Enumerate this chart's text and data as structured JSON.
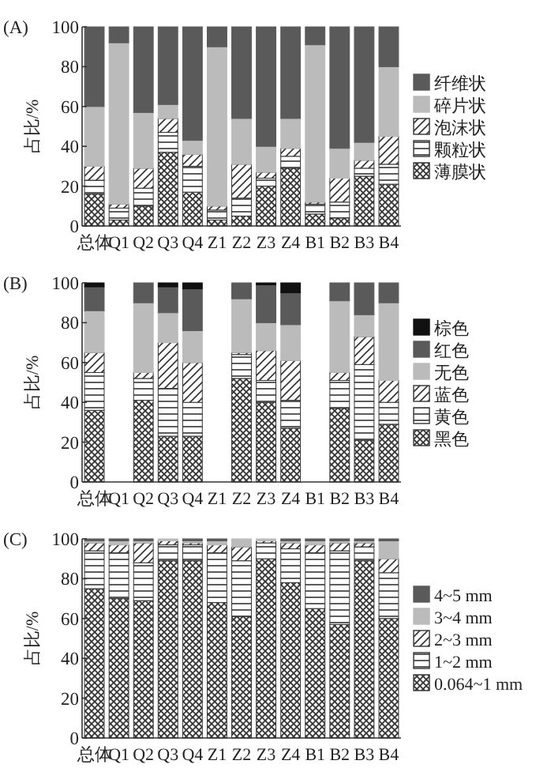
{
  "chart_data": [
    {
      "type": "bar",
      "title": "(A)",
      "ylabel": "占比/%",
      "stacked": true,
      "legend": "right",
      "ylim": [
        0,
        100
      ],
      "yticks": [
        0,
        20,
        40,
        60,
        80,
        100
      ],
      "categories": [
        "总体",
        "Q1",
        "Q2",
        "Q3",
        "Q4",
        "Z1",
        "Z2",
        "Z3",
        "Z4",
        "B1",
        "B2",
        "B3",
        "B4"
      ],
      "series": [
        {
          "name": "薄膜状",
          "color": "#333333",
          "values": [
            16,
            3,
            10,
            37,
            17,
            3,
            5,
            20,
            29,
            6,
            4,
            25,
            21
          ]
        },
        {
          "name": "颗粒状",
          "color": "#333333",
          "values": [
            7,
            6,
            9,
            10,
            13,
            5,
            9,
            4,
            6,
            5,
            8,
            4,
            10
          ]
        },
        {
          "name": "泡沫状",
          "color": "#333333",
          "values": [
            7,
            2,
            10,
            7,
            6,
            2,
            17,
            3,
            4,
            1,
            12,
            4,
            14
          ]
        },
        {
          "name": "碎片状",
          "color": "#bbbbbb",
          "values": [
            30,
            81,
            28,
            7,
            7,
            80,
            23,
            13,
            15,
            79,
            15,
            9,
            35
          ]
        },
        {
          "name": "纤维状",
          "color": "#5a5a5a",
          "values": [
            40,
            8,
            43,
            39,
            57,
            10,
            46,
            60,
            46,
            9,
            61,
            58,
            20
          ]
        }
      ]
    },
    {
      "type": "bar",
      "title": "(B)",
      "ylabel": "占比/%",
      "stacked": true,
      "legend": "right",
      "ylim": [
        0,
        100
      ],
      "yticks": [
        0,
        20,
        40,
        60,
        80,
        100
      ],
      "categories": [
        "总体",
        "Q1",
        "Q2",
        "Q3",
        "Q4",
        "Z1",
        "Z2",
        "Z3",
        "Z4",
        "B1",
        "B2",
        "B3",
        "B4"
      ],
      "series": [
        {
          "name": "黑色",
          "color": "#333333",
          "values": [
            36,
            null,
            41,
            23,
            23,
            null,
            52,
            40,
            27,
            null,
            37,
            21,
            29
          ]
        },
        {
          "name": "黄色",
          "color": "#333333",
          "values": [
            19,
            null,
            11,
            24,
            17,
            null,
            12,
            11,
            14,
            null,
            14,
            38,
            11
          ]
        },
        {
          "name": "蓝色",
          "color": "#333333",
          "values": [
            10,
            null,
            3,
            23,
            20,
            null,
            1,
            15,
            20,
            null,
            4,
            14,
            11
          ]
        },
        {
          "name": "无色",
          "color": "#bbbbbb",
          "values": [
            21,
            null,
            35,
            15,
            16,
            null,
            27,
            14,
            18,
            null,
            36,
            11,
            39
          ]
        },
        {
          "name": "红色",
          "color": "#5a5a5a",
          "values": [
            12,
            null,
            10,
            13,
            21,
            null,
            8,
            19,
            16,
            null,
            9,
            16,
            10
          ]
        },
        {
          "name": "棕色",
          "color": "#111111",
          "values": [
            2,
            null,
            0,
            2,
            3,
            null,
            0,
            1,
            5,
            null,
            0,
            0,
            0
          ]
        }
      ]
    },
    {
      "type": "bar",
      "title": "(C)",
      "ylabel": "占比/%",
      "stacked": true,
      "legend": "right",
      "ylim": [
        0,
        100
      ],
      "yticks": [
        0,
        20,
        40,
        60,
        80,
        100
      ],
      "categories": [
        "总体",
        "Q1",
        "Q2",
        "Q3",
        "Q4",
        "Z1",
        "Z2",
        "Z3",
        "Z4",
        "B1",
        "B2",
        "B3",
        "B4"
      ],
      "series": [
        {
          "name": "0.064~1 mm",
          "color": "#333333",
          "values": [
            75,
            70,
            69,
            89,
            89,
            68,
            61,
            90,
            78,
            65,
            57,
            89,
            60
          ]
        },
        {
          "name": "1~2 mm",
          "color": "#333333",
          "values": [
            19,
            23,
            19,
            8,
            8,
            25,
            28,
            8,
            17,
            28,
            37,
            7,
            23
          ]
        },
        {
          "name": "2~3 mm",
          "color": "#333333",
          "values": [
            4,
            4,
            10,
            2,
            1,
            4,
            7,
            1,
            3,
            4,
            4,
            2,
            7
          ]
        },
        {
          "name": "3~4 mm",
          "color": "#bbbbbb",
          "values": [
            1,
            2,
            1,
            1,
            1,
            2,
            4,
            1,
            1,
            2,
            1,
            1,
            9
          ]
        },
        {
          "name": "4~5 mm",
          "color": "#5a5a5a",
          "values": [
            1,
            1,
            1,
            0,
            1,
            1,
            0,
            0,
            1,
            1,
            1,
            1,
            1
          ]
        }
      ]
    }
  ]
}
